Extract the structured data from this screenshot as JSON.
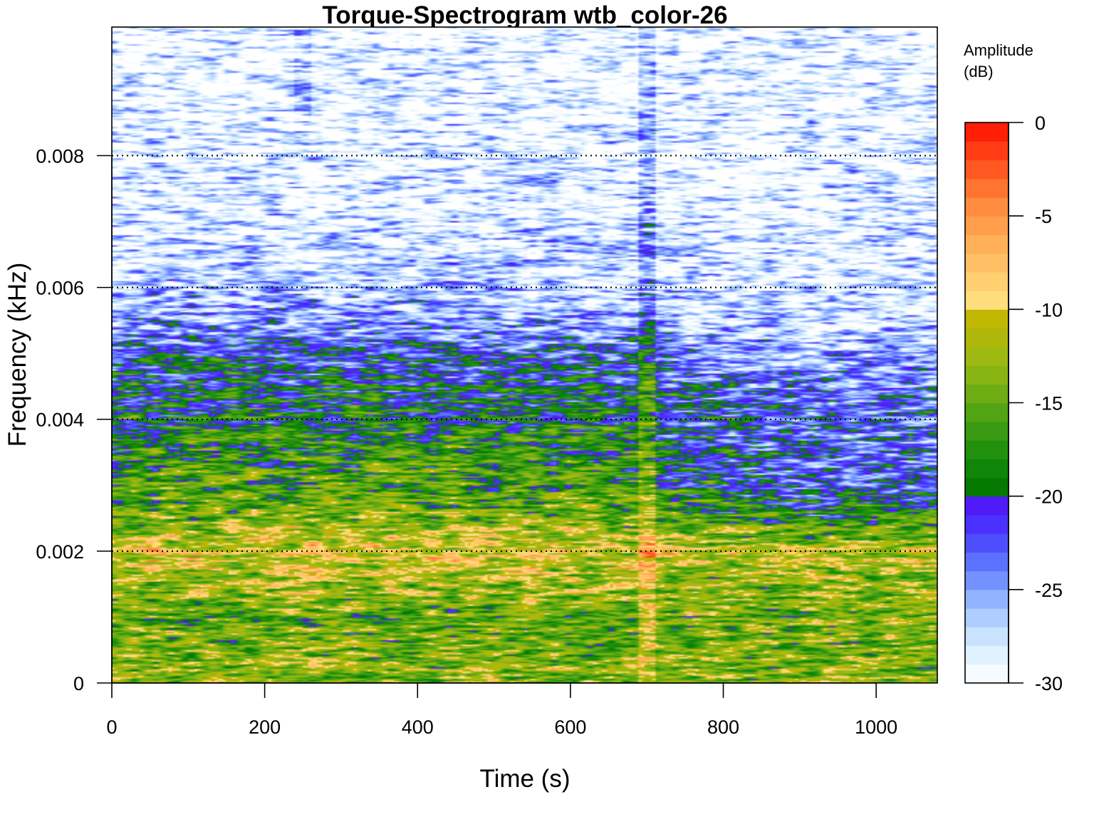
{
  "chart_data": {
    "type": "heatmap",
    "title": "Torque-Spectrogram wtb_color-26",
    "xlabel": "Time (s)",
    "ylabel": "Frequency (kHz)",
    "xlim": [
      0,
      1080
    ],
    "ylim": [
      0,
      0.00995
    ],
    "x_ticks": [
      "0",
      "200",
      "400",
      "600",
      "800",
      "1000"
    ],
    "x_tick_values": [
      0,
      200,
      400,
      600,
      800,
      1000
    ],
    "y_ticks": [
      "0",
      "0.002",
      "0.004",
      "0.006",
      "0.008"
    ],
    "y_tick_values": [
      0,
      0.002,
      0.004,
      0.006,
      0.008
    ],
    "grid": "horizontal dotted lines at y = 0.002, 0.004, 0.006, 0.008",
    "colorbar": {
      "title_line1": "Amplitude",
      "title_line2": "(dB)",
      "range": [
        -30,
        0
      ],
      "step": 1,
      "ticks": [
        "0",
        "-5",
        "-10",
        "-15",
        "-20",
        "-25",
        "-30"
      ],
      "tick_values": [
        0,
        -5,
        -10,
        -15,
        -20,
        -25,
        -30
      ],
      "placement": "right"
    },
    "amplitude_profile": {
      "description_levels": "approximate median amplitude (dB) by frequency band; texture is noisy",
      "bands_khz": [
        0.0,
        0.001,
        0.002,
        0.0025,
        0.003,
        0.0035,
        0.004,
        0.0045,
        0.005,
        0.0055,
        0.006,
        0.007,
        0.008,
        0.009,
        0.00995
      ],
      "level_db_early": [
        -13,
        -15,
        -10,
        -14,
        -16,
        -17,
        -19,
        -20,
        -22,
        -25,
        -27,
        -28.5,
        -29,
        -29.5,
        -29.5
      ],
      "level_db_late": [
        -14,
        -14,
        -11,
        -18,
        -22,
        -23,
        -23,
        -24,
        -26,
        -27.5,
        -28.5,
        -29,
        -29.5,
        -29.5,
        -29.8
      ],
      "transition_time_s": 760
    }
  }
}
